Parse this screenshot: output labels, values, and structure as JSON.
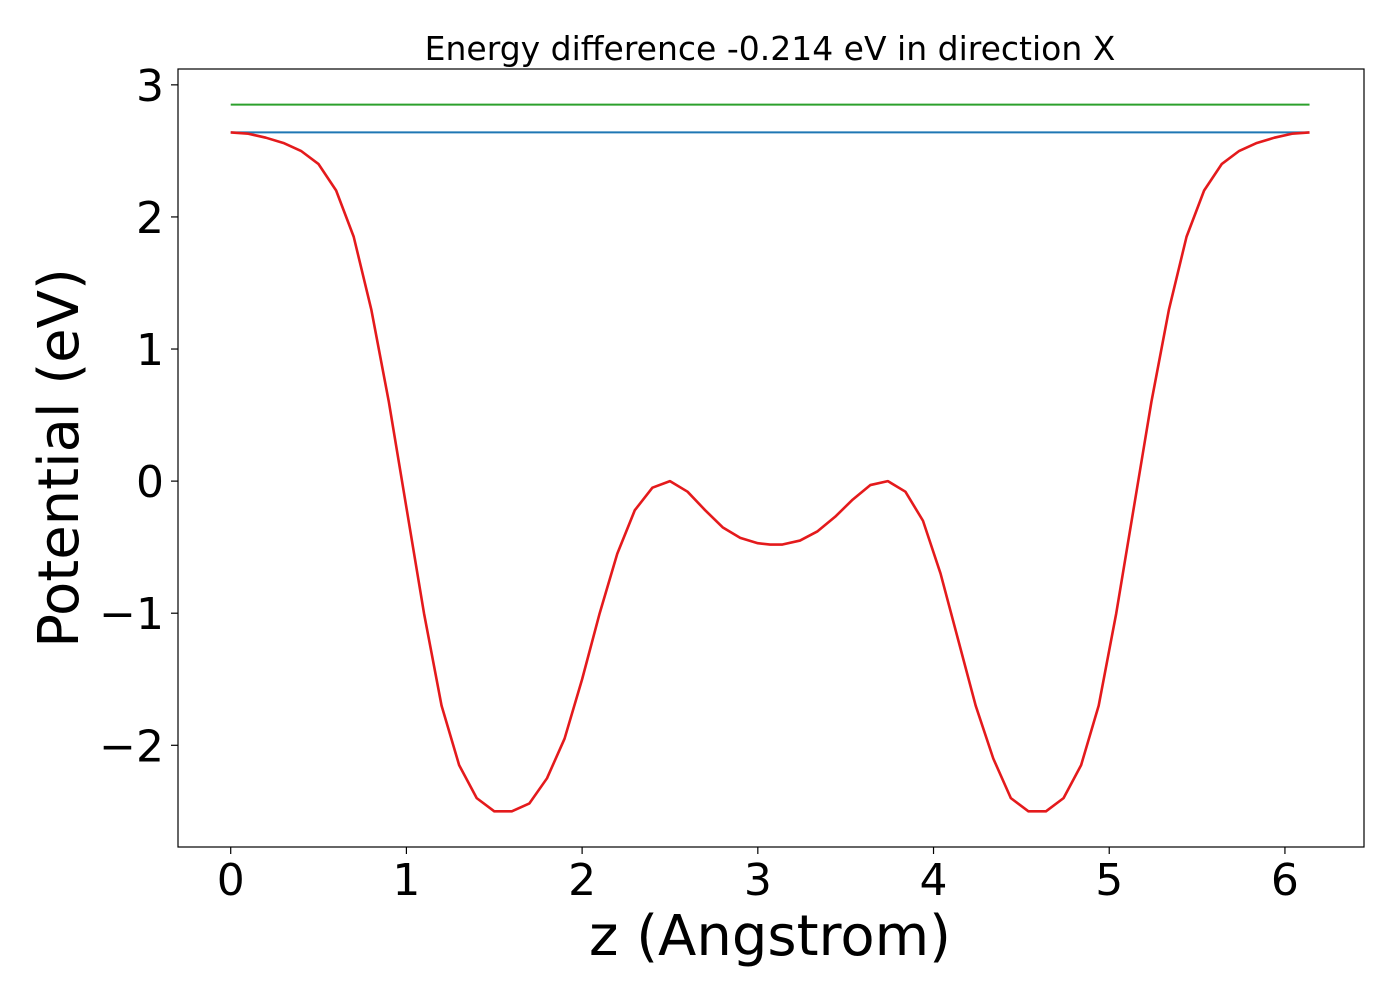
{
  "chart_data": {
    "type": "line",
    "title": "Energy difference -0.214 eV in direction X",
    "xlabel": "z (Angstrom)",
    "ylabel": "Potential (eV)",
    "xlim": [
      -0.3,
      6.45
    ],
    "ylim": [
      -2.77,
      3.12
    ],
    "xticks": [
      0,
      1,
      2,
      3,
      4,
      5,
      6
    ],
    "xtick_labels": [
      "0",
      "1",
      "2",
      "3",
      "4",
      "5",
      "6"
    ],
    "yticks": [
      -2,
      -1,
      0,
      1,
      2,
      3
    ],
    "ytick_labels": [
      "−2",
      "−1",
      "0",
      "1",
      "2",
      "3"
    ],
    "grid": false,
    "series": [
      {
        "color": "#2ca02c",
        "x": [
          0,
          6.14
        ],
        "y": [
          2.85,
          2.85
        ]
      },
      {
        "color": "#1f77b4",
        "x": [
          0,
          6.14
        ],
        "y": [
          2.64,
          2.64
        ]
      },
      {
        "color": "#e41a1c",
        "x": [
          0.0,
          0.1,
          0.2,
          0.3,
          0.4,
          0.5,
          0.6,
          0.7,
          0.8,
          0.9,
          1.0,
          1.1,
          1.2,
          1.3,
          1.4,
          1.5,
          1.6,
          1.7,
          1.8,
          1.9,
          2.0,
          2.1,
          2.2,
          2.3,
          2.4,
          2.5,
          2.6,
          2.7,
          2.8,
          2.9,
          3.0,
          3.07,
          3.14,
          3.24,
          3.34,
          3.44,
          3.54,
          3.64,
          3.74,
          3.84,
          3.94,
          4.04,
          4.14,
          4.24,
          4.34,
          4.44,
          4.54,
          4.64,
          4.74,
          4.84,
          4.94,
          5.04,
          5.14,
          5.24,
          5.34,
          5.44,
          5.54,
          5.64,
          5.74,
          5.84,
          5.94,
          6.04,
          6.14
        ],
        "y": [
          2.64,
          2.63,
          2.6,
          2.56,
          2.5,
          2.4,
          2.2,
          1.85,
          1.3,
          0.6,
          -0.2,
          -1.0,
          -1.7,
          -2.15,
          -2.4,
          -2.5,
          -2.5,
          -2.44,
          -2.25,
          -1.95,
          -1.5,
          -1.0,
          -0.55,
          -0.22,
          -0.05,
          0.0,
          -0.08,
          -0.22,
          -0.35,
          -0.43,
          -0.47,
          -0.48,
          -0.48,
          -0.45,
          -0.38,
          -0.27,
          -0.14,
          -0.03,
          0.0,
          -0.08,
          -0.3,
          -0.7,
          -1.2,
          -1.7,
          -2.1,
          -2.4,
          -2.5,
          -2.5,
          -2.4,
          -2.15,
          -1.7,
          -1.0,
          -0.2,
          0.6,
          1.3,
          1.85,
          2.2,
          2.4,
          2.5,
          2.56,
          2.6,
          2.63,
          2.64
        ]
      }
    ]
  }
}
